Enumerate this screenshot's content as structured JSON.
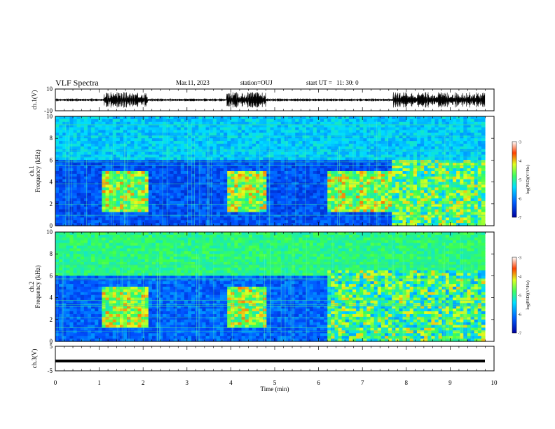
{
  "header": {
    "title": "VLF Spectra",
    "date": "Mar.11, 2023",
    "station": "station=OUJ",
    "start_ut_label": "start  UT  =",
    "start_ut_value": "11: 30: 0"
  },
  "chart_data": [
    {
      "type": "line",
      "name": "ch1-waveform",
      "ylabel": "ch.1(V)",
      "ylim": [
        -10,
        10
      ],
      "yticks": [
        "10",
        "-10"
      ],
      "xlim": [
        0,
        10
      ],
      "burst_intervals_min": [
        [
          1.1,
          2.1
        ],
        [
          3.9,
          4.8
        ],
        [
          7.7,
          9.8
        ]
      ]
    },
    {
      "type": "heatmap",
      "name": "ch1-spectrogram",
      "ylabel": "ch.1\nFrequency (kHz)",
      "ylim": [
        0,
        10
      ],
      "yticks": [
        "0",
        "2",
        "4",
        "6",
        "8",
        "10"
      ],
      "xlim": [
        0,
        10
      ],
      "intense_intervals_min": [
        [
          1.1,
          2.1
        ],
        [
          3.9,
          4.8
        ],
        [
          6.2,
          7.7
        ],
        [
          7.7,
          9.8
        ]
      ],
      "colorbar": {
        "label": "log(PSD)(V²/Hz)",
        "range": [
          -7,
          -3
        ],
        "ticks": [
          "-3",
          "-4",
          "-5",
          "-6",
          "-7"
        ]
      }
    },
    {
      "type": "heatmap",
      "name": "ch2-spectrogram",
      "ylabel": "ch.2\nFrequency (kHz)",
      "ylim": [
        0,
        10
      ],
      "yticks": [
        "0",
        "2",
        "4",
        "6",
        "8",
        "10"
      ],
      "xlim": [
        0,
        10
      ],
      "intense_intervals_min": [
        [
          1.1,
          2.1
        ],
        [
          3.9,
          4.8
        ],
        [
          6.2,
          7.7
        ],
        [
          7.7,
          9.8
        ]
      ],
      "colorbar": {
        "label": "log(PSD)(V²/Hz)",
        "range": [
          -7,
          -3
        ],
        "ticks": [
          "-3",
          "-4",
          "-5",
          "-6",
          "-7"
        ]
      }
    },
    {
      "type": "line",
      "name": "ch3-waveform",
      "ylabel": "ch.3(V)",
      "ylim": [
        -5,
        5
      ],
      "yticks": [
        "5",
        "-5"
      ],
      "xlim": [
        0,
        10
      ],
      "constant_value": -1.0
    }
  ],
  "xaxis": {
    "label": "Time  (min)",
    "ticks": [
      "0",
      "1",
      "2",
      "3",
      "4",
      "5",
      "6",
      "7",
      "8",
      "9",
      "10"
    ]
  }
}
